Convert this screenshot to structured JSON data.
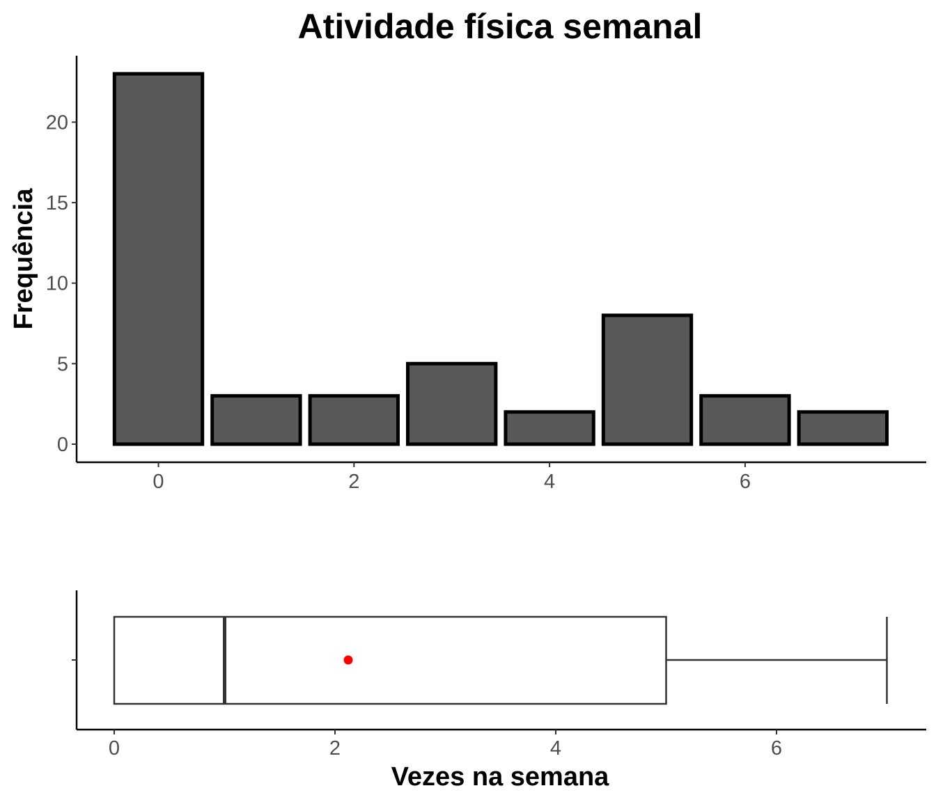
{
  "chart_data": [
    {
      "type": "bar",
      "title": "Atividade física semanal",
      "xlabel": "",
      "ylabel": "Frequência",
      "x": [
        0,
        1,
        2,
        3,
        4,
        5,
        6,
        7
      ],
      "values": [
        23,
        3,
        3,
        5,
        2,
        8,
        3,
        2
      ],
      "xlim": [
        -0.6,
        7.6
      ],
      "ylim": [
        0,
        24
      ],
      "x_ticks": [
        0,
        2,
        4,
        6
      ],
      "y_ticks": [
        0,
        5,
        10,
        15,
        20
      ],
      "grid": false,
      "colors": {
        "bar_fill": "#595959",
        "bar_outline": "#000000"
      }
    },
    {
      "type": "boxplot",
      "xlabel": "Vezes na semana",
      "min": 0,
      "q1": 0,
      "median": 1,
      "q3": 5,
      "max": 7,
      "mean": 2.12,
      "x_ticks": [
        0,
        2,
        4,
        6
      ],
      "grid": false,
      "colors": {
        "box_outline": "#333333",
        "mean_point": "#ff0000"
      }
    }
  ]
}
